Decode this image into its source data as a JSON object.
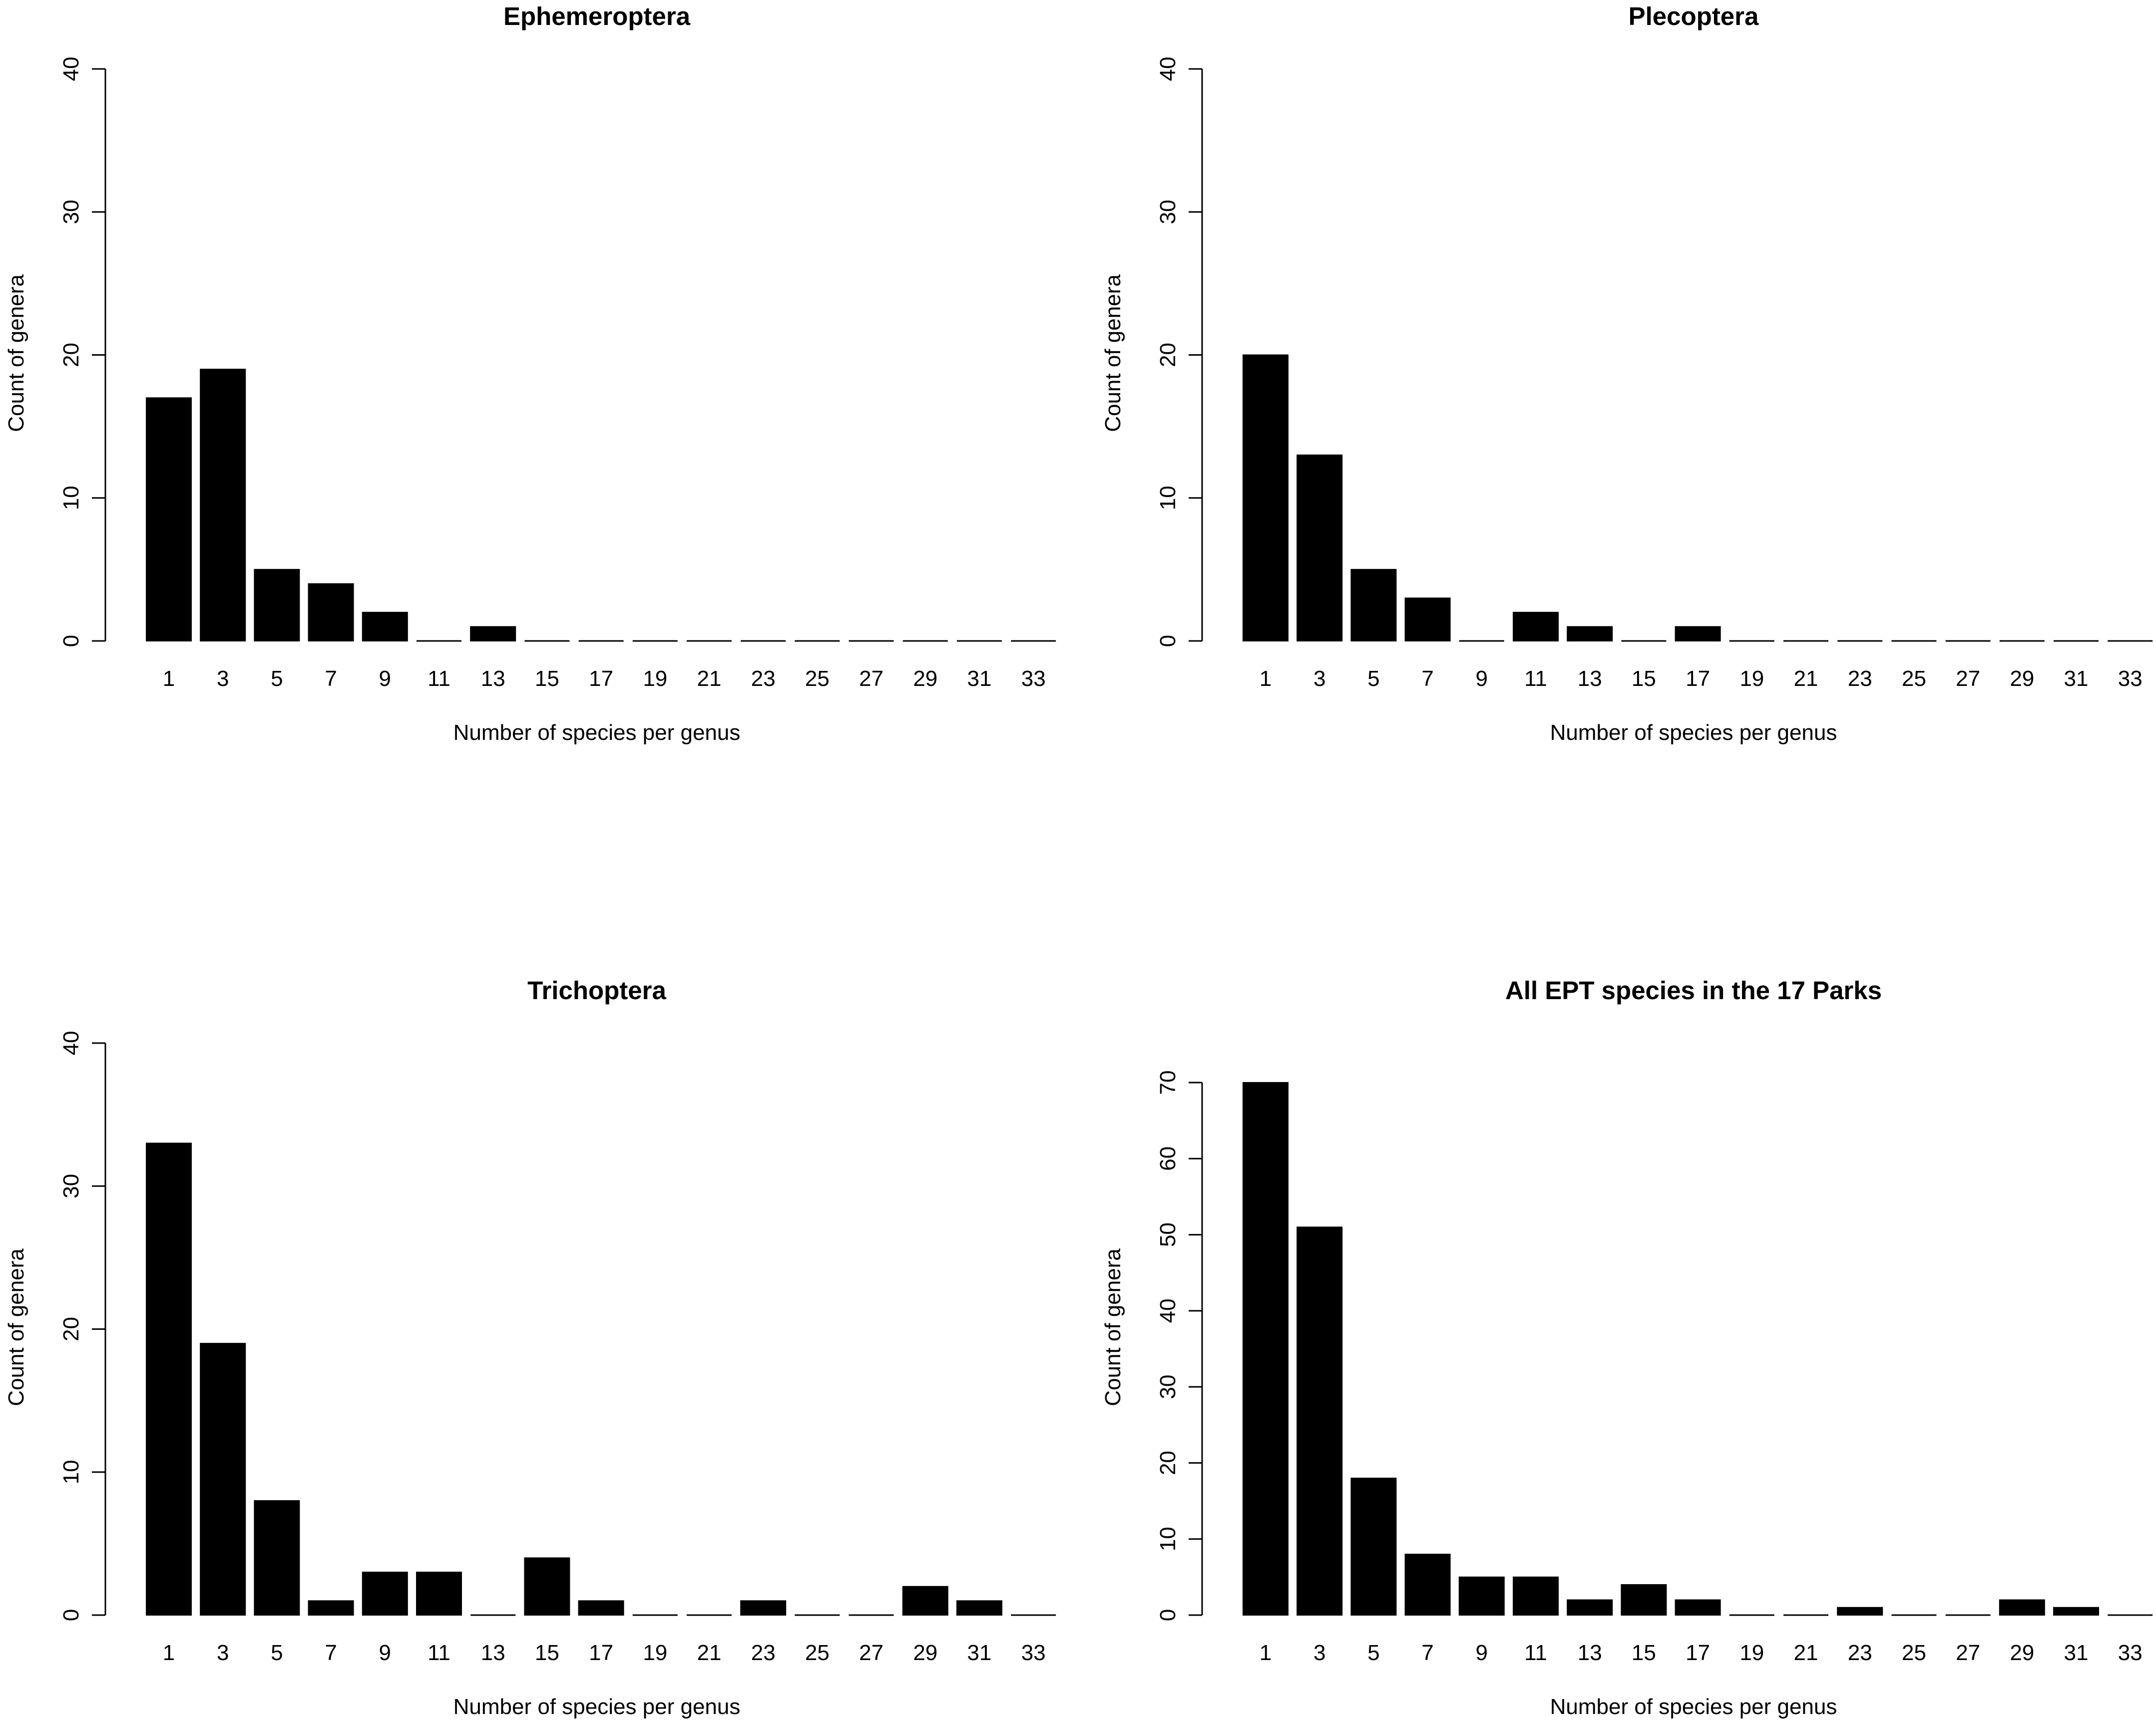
{
  "chart_data": [
    {
      "type": "bar",
      "title": "Ephemeroptera",
      "xlabel": "Number of species per genus",
      "ylabel": "Count of genera",
      "categories": [
        "1",
        "3",
        "5",
        "7",
        "9",
        "11",
        "13",
        "15",
        "17",
        "19",
        "21",
        "23",
        "25",
        "27",
        "29",
        "31",
        "33"
      ],
      "values": [
        17,
        19,
        5,
        4,
        2,
        0,
        1,
        0,
        0,
        0,
        0,
        0,
        0,
        0,
        0,
        0,
        0
      ],
      "ylim": [
        0,
        40
      ],
      "yticks": [
        0,
        10,
        20,
        30,
        40
      ],
      "grid": false
    },
    {
      "type": "bar",
      "title": "Plecoptera",
      "xlabel": "Number of species per genus",
      "ylabel": "Count of genera",
      "categories": [
        "1",
        "3",
        "5",
        "7",
        "9",
        "11",
        "13",
        "15",
        "17",
        "19",
        "21",
        "23",
        "25",
        "27",
        "29",
        "31",
        "33"
      ],
      "values": [
        20,
        13,
        5,
        3,
        0,
        2,
        1,
        0,
        1,
        0,
        0,
        0,
        0,
        0,
        0,
        0,
        0
      ],
      "ylim": [
        0,
        40
      ],
      "yticks": [
        0,
        10,
        20,
        30,
        40
      ],
      "grid": false
    },
    {
      "type": "bar",
      "title": "Trichoptera",
      "xlabel": "Number of species per genus",
      "ylabel": "Count of genera",
      "categories": [
        "1",
        "3",
        "5",
        "7",
        "9",
        "11",
        "13",
        "15",
        "17",
        "19",
        "21",
        "23",
        "25",
        "27",
        "29",
        "31",
        "33"
      ],
      "values": [
        33,
        19,
        8,
        1,
        3,
        3,
        0,
        4,
        1,
        0,
        0,
        1,
        0,
        0,
        2,
        1,
        0
      ],
      "ylim": [
        0,
        40
      ],
      "yticks": [
        0,
        10,
        20,
        30,
        40
      ],
      "grid": false
    },
    {
      "type": "bar",
      "title": "All EPT species in the 17 Parks",
      "xlabel": "Number of species per genus",
      "ylabel": "Count of genera",
      "categories": [
        "1",
        "3",
        "5",
        "7",
        "9",
        "11",
        "13",
        "15",
        "17",
        "19",
        "21",
        "23",
        "25",
        "27",
        "29",
        "31",
        "33"
      ],
      "values": [
        70,
        51,
        18,
        8,
        5,
        5,
        2,
        4,
        2,
        0,
        0,
        1,
        0,
        0,
        2,
        1,
        0
      ],
      "ylim": [
        0,
        70
      ],
      "yticks": [
        0,
        10,
        20,
        30,
        40,
        50,
        60,
        70
      ],
      "grid": false
    }
  ],
  "colors": {
    "bar": "#000000",
    "axis": "#000000",
    "background": "#ffffff"
  }
}
